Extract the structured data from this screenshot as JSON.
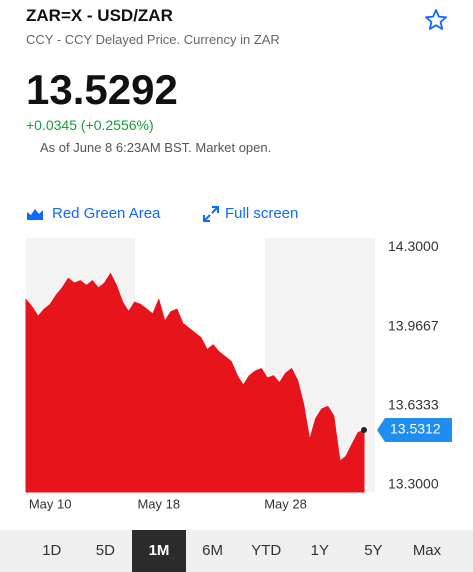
{
  "header": {
    "title": "ZAR=X - USD/ZAR",
    "subtitle": "CCY - CCY Delayed Price. Currency in ZAR",
    "price": "13.5292",
    "change": "+0.0345 (+0.2556%)",
    "as_of": "As of June 8 6:23AM BST. Market open."
  },
  "toolbar": {
    "chart_style": "Red Green Area",
    "full_screen": "Full screen"
  },
  "ranges": {
    "options": [
      "1D",
      "5D",
      "1M",
      "6M",
      "YTD",
      "1Y",
      "5Y",
      "Max"
    ],
    "selected": 2
  },
  "chart_data": {
    "type": "area",
    "categories": [
      null,
      null,
      null,
      null,
      "May 10",
      null,
      null,
      null,
      null,
      null,
      null,
      null,
      null,
      null,
      null,
      null,
      null,
      null,
      null,
      null,
      null,
      null,
      "May 18",
      null,
      null,
      null,
      null,
      null,
      null,
      null,
      null,
      null,
      null,
      null,
      null,
      null,
      null,
      null,
      null,
      null,
      null,
      null,
      null,
      "May 28",
      null,
      null,
      null,
      null,
      null,
      null,
      null,
      null,
      null,
      null,
      null,
      null,
      null
    ],
    "series": [
      {
        "name": "USD/ZAR",
        "color": "#e8141c",
        "values": [
          14.08,
          14.05,
          14.01,
          14.04,
          14.06,
          14.1,
          14.13,
          14.17,
          14.15,
          14.16,
          14.14,
          14.16,
          14.13,
          14.15,
          14.19,
          14.14,
          14.07,
          14.03,
          14.07,
          14.06,
          14.04,
          14.02,
          14.08,
          13.99,
          14.03,
          14.04,
          13.98,
          13.96,
          13.94,
          13.92,
          13.87,
          13.89,
          13.86,
          13.84,
          13.82,
          13.76,
          13.72,
          13.76,
          13.78,
          13.79,
          13.75,
          13.76,
          13.73,
          13.77,
          13.79,
          13.74,
          13.64,
          13.49,
          13.58,
          13.62,
          13.63,
          13.59,
          13.4,
          13.42,
          13.47,
          13.52,
          13.5312
        ]
      }
    ],
    "ylim": [
      13.27,
      14.34
    ],
    "yticks": [
      {
        "value": 13.3,
        "label": "13.3000"
      },
      {
        "value": 13.6333,
        "label": "13.6333"
      },
      {
        "value": 13.9667,
        "label": "13.9667"
      },
      {
        "value": 14.3,
        "label": "14.3000"
      }
    ],
    "grid": false
  }
}
